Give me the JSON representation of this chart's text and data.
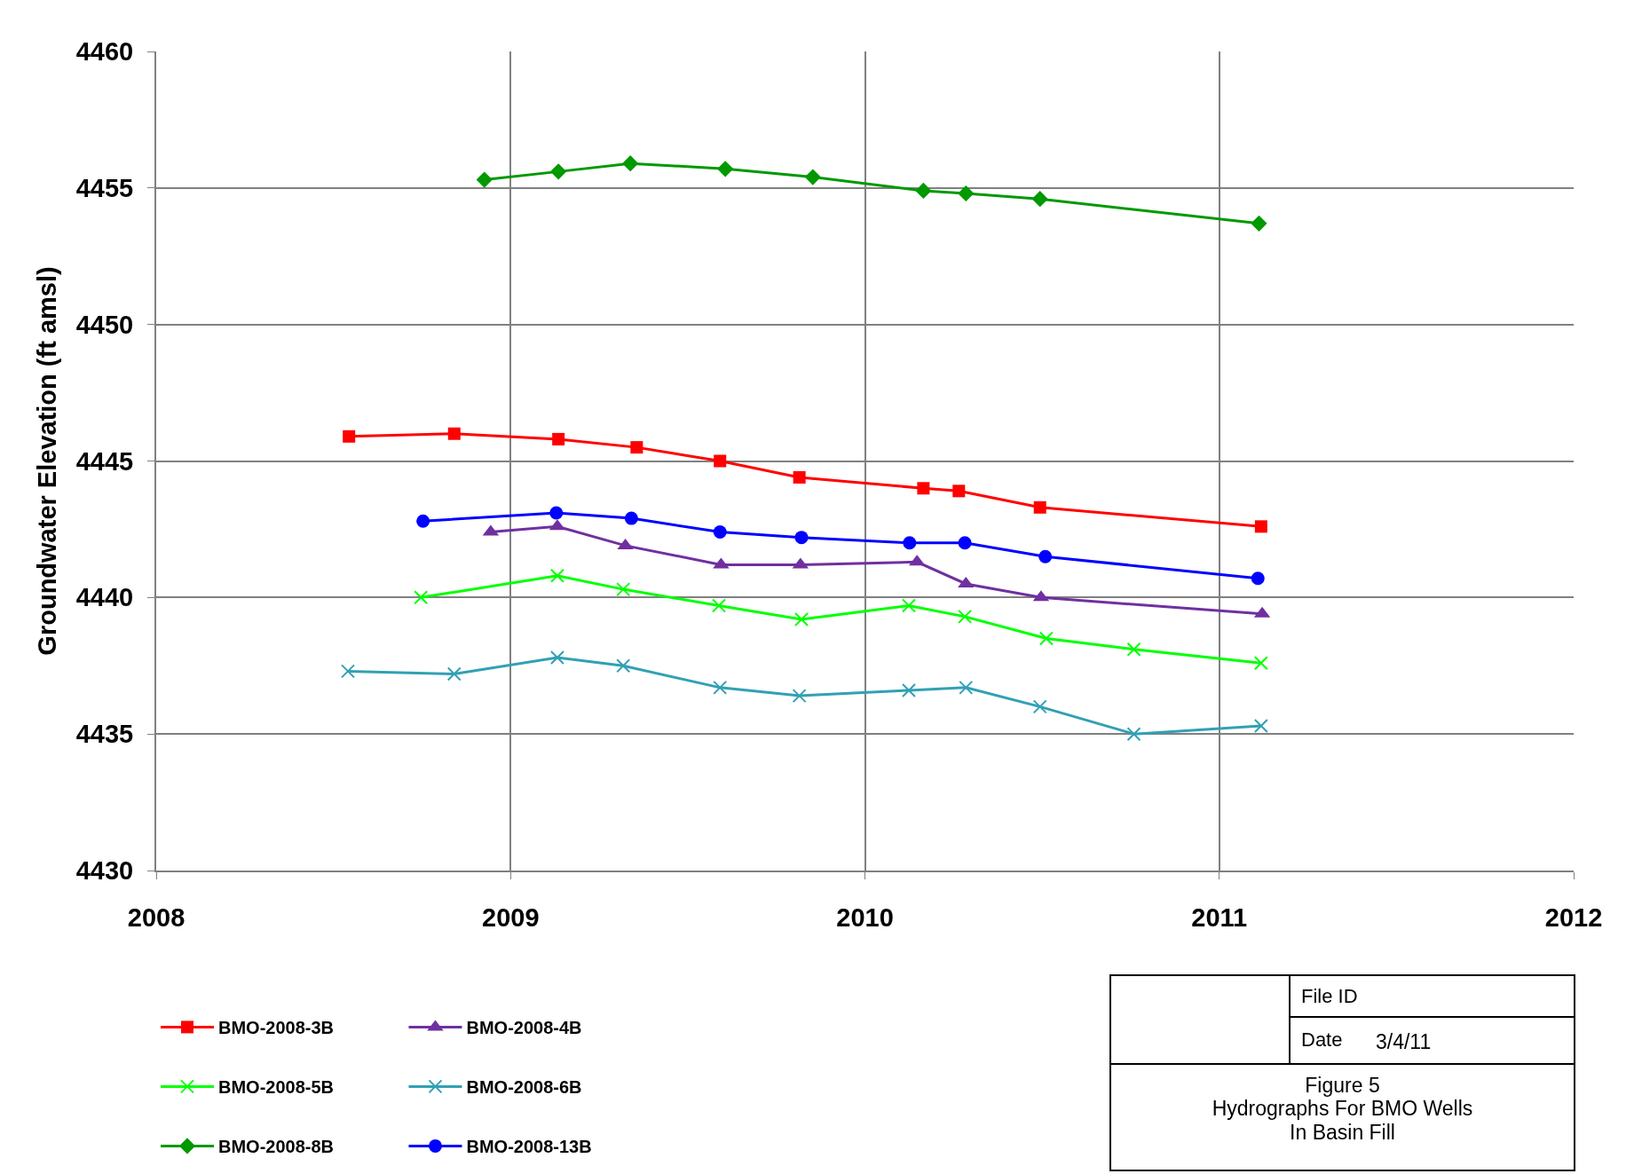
{
  "chart_data": {
    "type": "line",
    "ylabel": "Groundwater Elevation (ft amsl)",
    "xlim": [
      2008,
      2012
    ],
    "xticks": [
      2008,
      2009,
      2010,
      2011,
      2012
    ],
    "ylim": [
      4430,
      4460
    ],
    "yticks": [
      4430,
      4435,
      4440,
      4445,
      4450,
      4455,
      4460
    ],
    "grid": true,
    "legend": "bottom left",
    "line_style": "solid",
    "series": [
      {
        "name": "BMO-2008-3B",
        "color": "#ff0000",
        "marker": "square",
        "x": [
          2008.544,
          2008.841,
          2009.135,
          2009.356,
          2009.591,
          2009.815,
          2010.165,
          2010.265,
          2010.494,
          2011.118
        ],
        "values": [
          4445.9,
          4446.0,
          4445.8,
          4445.5,
          4445.0,
          4444.4,
          4444.0,
          4443.9,
          4443.3,
          4442.6
        ]
      },
      {
        "name": "BMO-2008-4B",
        "color": "#7030a0",
        "marker": "triangle",
        "x": [
          2008.944,
          2009.132,
          2009.324,
          2009.594,
          2009.818,
          2010.147,
          2010.285,
          2010.497,
          2011.121
        ],
        "values": [
          4442.4,
          4442.6,
          4441.9,
          4441.2,
          4441.2,
          4441.3,
          4440.5,
          4440.0,
          4439.4
        ]
      },
      {
        "name": "BMO-2008-5B",
        "color": "#00ff00",
        "marker": "cross",
        "x": [
          2008.747,
          2009.132,
          2009.318,
          2009.588,
          2009.821,
          2010.124,
          2010.282,
          2010.512,
          2010.759,
          2011.118
        ],
        "values": [
          4440.0,
          4440.8,
          4440.3,
          4439.7,
          4439.2,
          4439.7,
          4439.3,
          4438.5,
          4438.1,
          4437.6
        ]
      },
      {
        "name": "BMO-2008-6B",
        "color": "#31a0b4",
        "marker": "cross",
        "x": [
          2008.541,
          2008.841,
          2009.132,
          2009.318,
          2009.591,
          2009.815,
          2010.124,
          2010.285,
          2010.494,
          2010.759,
          2011.118
        ],
        "values": [
          4437.3,
          4437.2,
          4437.8,
          4437.5,
          4436.7,
          4436.4,
          4436.6,
          4436.7,
          4436.0,
          4435.0,
          4435.3
        ]
      },
      {
        "name": "BMO-2008-8B",
        "color": "#009900",
        "marker": "diamond",
        "x": [
          2008.926,
          2009.135,
          2009.338,
          2009.606,
          2009.853,
          2010.165,
          2010.285,
          2010.494,
          2011.112
        ],
        "values": [
          4455.3,
          4455.6,
          4455.9,
          4455.7,
          4455.4,
          4454.9,
          4454.8,
          4454.6,
          4453.7
        ]
      },
      {
        "name": "BMO-2008-13B",
        "color": "#0000ff",
        "marker": "circle",
        "x": [
          2008.753,
          2009.129,
          2009.341,
          2009.591,
          2009.821,
          2010.126,
          2010.282,
          2010.509,
          2011.109
        ],
        "values": [
          4442.8,
          4443.1,
          4442.9,
          4442.4,
          4442.2,
          4442.0,
          4442.0,
          4441.5,
          4440.7
        ]
      }
    ],
    "annotations": [
      "File ID",
      "Date",
      "3/4/11",
      "Figure 5\nHydrographs For BMO Wells\nIn Basin Fill"
    ]
  }
}
